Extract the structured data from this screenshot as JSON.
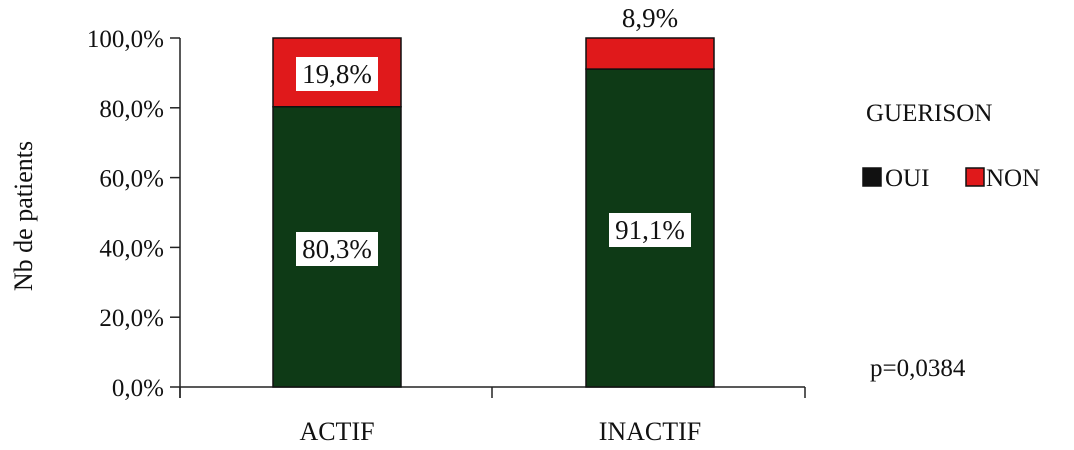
{
  "chart_data": {
    "type": "bar",
    "stacked": true,
    "categories": [
      "ACTIF",
      "INACTIF"
    ],
    "series": [
      {
        "name": "OUI",
        "values": [
          80.3,
          91.1
        ],
        "labels": [
          "80,3%",
          "91,1%"
        ],
        "color": "#0e3a16"
      },
      {
        "name": "NON",
        "values": [
          19.8,
          8.9
        ],
        "labels": [
          "19,8%",
          "8,9%"
        ],
        "color": "#e0191b"
      }
    ],
    "ylabel": "Nb de patients",
    "ylim": [
      0,
      100
    ],
    "yticks": [
      0,
      20,
      40,
      60,
      80,
      100
    ],
    "ytick_labels": [
      "0,0%",
      "20,0%",
      "40,0%",
      "60,0%",
      "80,0%",
      "100,0%"
    ],
    "legend_title": "GUERISON",
    "legend_placement": "right",
    "annotation": "p=0,0384",
    "grid": false
  }
}
